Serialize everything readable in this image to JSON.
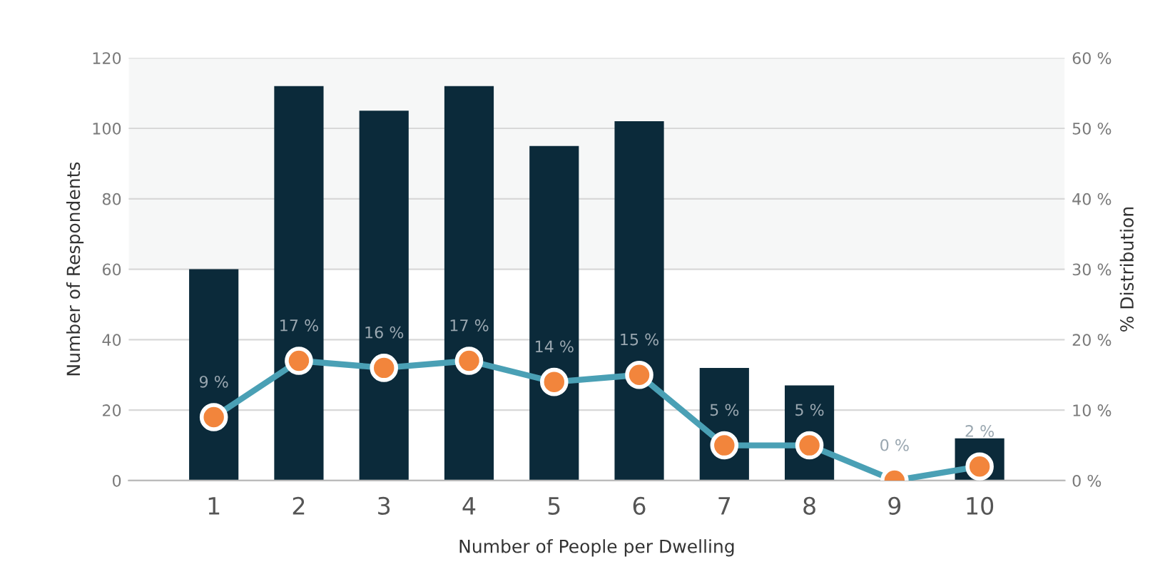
{
  "chart_data": {
    "type": "bar",
    "xlabel": "Number of People per Dwelling",
    "ylabel": "Number of Respondents",
    "y2label": "% Distribution",
    "categories": [
      "1",
      "2",
      "3",
      "4",
      "5",
      "6",
      "7",
      "8",
      "9",
      "10"
    ],
    "series": [
      {
        "color": "#0b2a3a",
        "values": [
          60,
          112,
          105,
          112,
          95,
          102,
          32,
          27,
          0,
          12
        ]
      },
      {
        "type": "line",
        "axis": "y2",
        "color": "#4aa0b5",
        "marker": "circle",
        "values": [
          9,
          17,
          16,
          17,
          14,
          15,
          5,
          5,
          0,
          2
        ],
        "value_labels": [
          "9 %",
          "17 %",
          "16 %",
          "17 %",
          "14 %",
          "15 %",
          "5 %",
          "5 %",
          "0 %",
          "2 %"
        ]
      }
    ],
    "ylim": [
      0,
      120
    ],
    "yticks": [
      0,
      20,
      40,
      60,
      80,
      100,
      120
    ],
    "y2lim": [
      0,
      60
    ],
    "y2ticks": [
      {
        "value": 0,
        "label": "0 %"
      },
      {
        "value": 10,
        "label": "10 %"
      },
      {
        "value": 20,
        "label": "20 %"
      },
      {
        "value": 30,
        "label": "30 %"
      },
      {
        "value": 40,
        "label": "40 %"
      },
      {
        "value": 50,
        "label": "50 %"
      },
      {
        "value": 60,
        "label": "60 %"
      }
    ],
    "bands": [
      {
        "axis": "y",
        "from": 60,
        "to": 120,
        "color": "#f6f7f7"
      }
    ],
    "grid": "y"
  }
}
